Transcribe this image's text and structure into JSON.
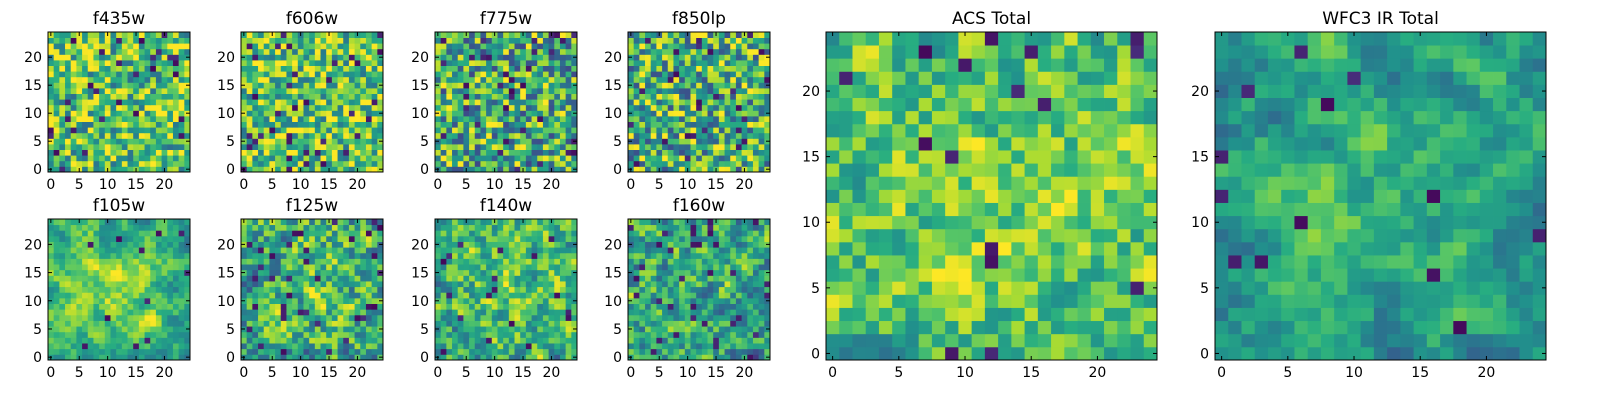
{
  "figure": {
    "colormap": "viridis",
    "colors": {
      "low": "#440154",
      "mid_low": "#31688e",
      "mid": "#21918c",
      "mid_high": "#5ec962",
      "high": "#fde725"
    }
  },
  "chart_data": [
    {
      "type": "heatmap",
      "title": "f435w",
      "grid_size": 25,
      "xticks": [
        0,
        5,
        10,
        15,
        20
      ],
      "yticks": [
        0,
        5,
        10,
        15,
        20
      ],
      "xlim": [
        -0.5,
        24.5
      ],
      "ylim": [
        -0.5,
        24.5
      ],
      "origin": "lower",
      "colormap": "viridis",
      "grid": false,
      "seed": 11,
      "smoothness": 0.0,
      "bias": 0.72,
      "contrast": 0.35,
      "dark_fraction": 0.05
    },
    {
      "type": "heatmap",
      "title": "f606w",
      "grid_size": 25,
      "xticks": [
        0,
        5,
        10,
        15,
        20
      ],
      "yticks": [
        0,
        5,
        10,
        15,
        20
      ],
      "xlim": [
        -0.5,
        24.5
      ],
      "ylim": [
        -0.5,
        24.5
      ],
      "origin": "lower",
      "colormap": "viridis",
      "grid": false,
      "seed": 23,
      "smoothness": 0.1,
      "bias": 0.74,
      "contrast": 0.35,
      "dark_fraction": 0.05
    },
    {
      "type": "heatmap",
      "title": "f775w",
      "grid_size": 25,
      "xticks": [
        0,
        5,
        10,
        15,
        20
      ],
      "yticks": [
        0,
        5,
        10,
        15,
        20
      ],
      "xlim": [
        -0.5,
        24.5
      ],
      "ylim": [
        -0.5,
        24.5
      ],
      "origin": "lower",
      "colormap": "viridis",
      "grid": false,
      "seed": 37,
      "smoothness": 0.1,
      "bias": 0.62,
      "contrast": 0.4,
      "dark_fraction": 0.06
    },
    {
      "type": "heatmap",
      "title": "f850lp",
      "grid_size": 25,
      "xticks": [
        0,
        5,
        10,
        15,
        20
      ],
      "yticks": [
        0,
        5,
        10,
        15,
        20
      ],
      "xlim": [
        -0.5,
        24.5
      ],
      "ylim": [
        -0.5,
        24.5
      ],
      "origin": "lower",
      "colormap": "viridis",
      "grid": false,
      "seed": 41,
      "smoothness": 0.1,
      "bias": 0.64,
      "contrast": 0.4,
      "dark_fraction": 0.05
    },
    {
      "type": "heatmap",
      "title": "f105w",
      "grid_size": 25,
      "xticks": [
        0,
        5,
        10,
        15,
        20
      ],
      "yticks": [
        0,
        5,
        10,
        15,
        20
      ],
      "xlim": [
        -0.5,
        24.5
      ],
      "ylim": [
        -0.5,
        24.5
      ],
      "origin": "lower",
      "colormap": "viridis",
      "grid": false,
      "seed": 53,
      "smoothness": 0.5,
      "bias": 0.64,
      "contrast": 0.3,
      "dark_fraction": 0.02,
      "center_boost": 0.18
    },
    {
      "type": "heatmap",
      "title": "f125w",
      "grid_size": 25,
      "xticks": [
        0,
        5,
        10,
        15,
        20
      ],
      "yticks": [
        0,
        5,
        10,
        15,
        20
      ],
      "xlim": [
        -0.5,
        24.5
      ],
      "ylim": [
        -0.5,
        24.5
      ],
      "origin": "lower",
      "colormap": "viridis",
      "grid": false,
      "seed": 67,
      "smoothness": 0.4,
      "bias": 0.6,
      "contrast": 0.35,
      "dark_fraction": 0.04,
      "center_boost": 0.1
    },
    {
      "type": "heatmap",
      "title": "f140w",
      "grid_size": 25,
      "xticks": [
        0,
        5,
        10,
        15,
        20
      ],
      "yticks": [
        0,
        5,
        10,
        15,
        20
      ],
      "xlim": [
        -0.5,
        24.5
      ],
      "ylim": [
        -0.5,
        24.5
      ],
      "origin": "lower",
      "colormap": "viridis",
      "grid": false,
      "seed": 79,
      "smoothness": 0.4,
      "bias": 0.62,
      "contrast": 0.35,
      "dark_fraction": 0.04,
      "center_boost": 0.12
    },
    {
      "type": "heatmap",
      "title": "f160w",
      "grid_size": 25,
      "xticks": [
        0,
        5,
        10,
        15,
        20
      ],
      "yticks": [
        0,
        5,
        10,
        15,
        20
      ],
      "xlim": [
        -0.5,
        24.5
      ],
      "ylim": [
        -0.5,
        24.5
      ],
      "origin": "lower",
      "colormap": "viridis",
      "grid": false,
      "seed": 83,
      "smoothness": 0.4,
      "bias": 0.55,
      "contrast": 0.38,
      "dark_fraction": 0.06,
      "center_boost": 0.08
    },
    {
      "type": "heatmap",
      "title": "ACS Total",
      "grid_size": 25,
      "xticks": [
        0,
        5,
        10,
        15,
        20
      ],
      "yticks": [
        0,
        5,
        10,
        15,
        20
      ],
      "xlim": [
        -0.5,
        24.5
      ],
      "ylim": [
        -0.5,
        24.5
      ],
      "origin": "lower",
      "colormap": "viridis",
      "grid": false,
      "seed": 97,
      "smoothness": 0.3,
      "bias": 0.68,
      "contrast": 0.3,
      "dark_fraction": 0.03,
      "center_boost": 0.08
    },
    {
      "type": "heatmap",
      "title": "WFC3 IR Total",
      "grid_size": 25,
      "xticks": [
        0,
        5,
        10,
        15,
        20
      ],
      "yticks": [
        0,
        5,
        10,
        15,
        20
      ],
      "xlim": [
        -0.5,
        24.5
      ],
      "ylim": [
        -0.5,
        24.5
      ],
      "origin": "lower",
      "colormap": "viridis",
      "grid": false,
      "seed": 101,
      "smoothness": 0.7,
      "bias": 0.55,
      "contrast": 0.25,
      "dark_fraction": 0.02,
      "center_boost": 0.15
    }
  ]
}
